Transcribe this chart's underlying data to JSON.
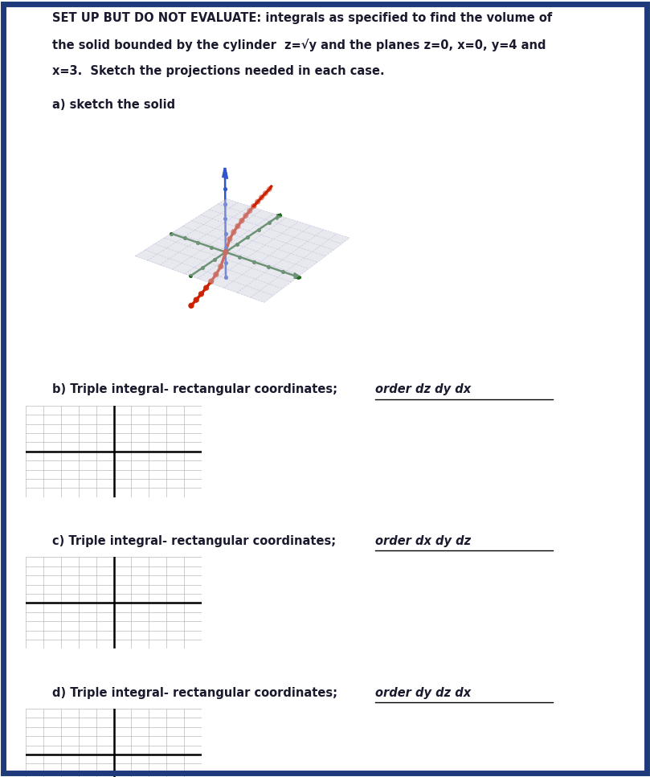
{
  "line1": "SET UP BUT DO NOT EVALUATE: integrals as specified to find the volume of",
  "line2": "the solid bounded by the cylinder  z=√y and the planes z=0, x=0, y=4 and",
  "line3": "x=3.  Sketch the projections needed in each case.",
  "a_label": "a) sketch the solid",
  "b_label": "b) Triple integral- rectangular coordinates;  ",
  "b_order": "order dz dy dx",
  "c_label": "c) Triple integral- rectangular coordinates;  ",
  "c_order": "order dx dy dz",
  "d_label": "d) Triple integral- rectangular coordinates;  ",
  "d_order": "order dy dz dx",
  "bg_color": "#ffffff",
  "border_color": "#1e3a7a",
  "text_color": "#1a1a2e",
  "axis_color_z": "#3355cc",
  "axis_color_xy": "#226622",
  "curve_color": "#cc2200",
  "grid_color": "#aaaacc",
  "plane_color": "#ccccdd",
  "plane_alpha": 0.45,
  "underline_color": "#000000"
}
